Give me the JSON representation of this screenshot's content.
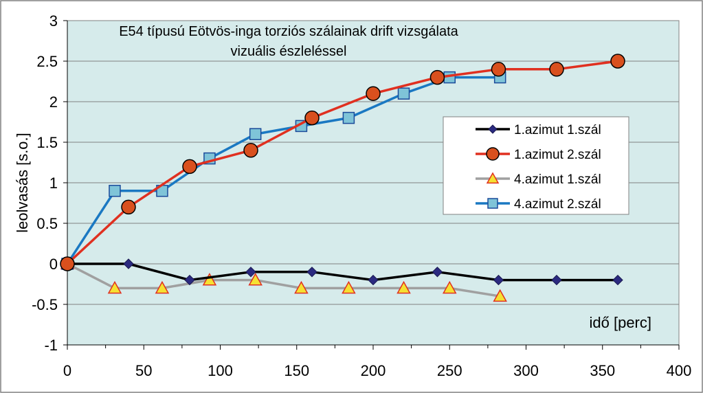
{
  "chart_data": {
    "type": "line",
    "title_lines": [
      "E54 típusú Eötvös-inga torziós szálainak drift vizsgálata",
      "vizuális észleléssel"
    ],
    "xlabel": "idő [perc]",
    "ylabel": "leolvasás [s.o.]",
    "xlim": [
      0,
      400
    ],
    "ylim": [
      -1,
      3
    ],
    "x_ticks": [
      "0",
      "50",
      "100",
      "150",
      "200",
      "250",
      "300",
      "350",
      "400"
    ],
    "y_ticks": [
      "-1",
      "-0.5",
      "0",
      "0.5",
      "1",
      "1.5",
      "2",
      "2.5",
      "3"
    ],
    "grid": true,
    "legend_position": "right",
    "plot_background": "#d6ebeb",
    "series": [
      {
        "name": "1.azimut 1.szál",
        "color": "#000000",
        "marker": "diamond",
        "marker_fill": "#2b2a80",
        "x": [
          0,
          40,
          80,
          120,
          160,
          200,
          242,
          282,
          320,
          360
        ],
        "y": [
          0,
          0,
          -0.2,
          -0.1,
          -0.1,
          -0.2,
          -0.1,
          -0.2,
          -0.2,
          -0.2
        ]
      },
      {
        "name": "1.azimut 2.szál",
        "color": "#e03020",
        "marker": "circle",
        "marker_fill": "#d9501e",
        "x": [
          0,
          40,
          80,
          120,
          160,
          200,
          242,
          282,
          320,
          360
        ],
        "y": [
          0,
          0.7,
          1.2,
          1.4,
          1.8,
          2.1,
          2.3,
          2.4,
          2.4,
          2.5
        ]
      },
      {
        "name": "4.azimut 1.szál",
        "color": "#a0a0a0",
        "marker": "triangle",
        "marker_fill": "#f5e132",
        "x": [
          0,
          31,
          62,
          93,
          123,
          153,
          184,
          220,
          250,
          283
        ],
        "y": [
          0,
          -0.3,
          -0.3,
          -0.2,
          -0.2,
          -0.3,
          -0.3,
          -0.3,
          -0.3,
          -0.4
        ]
      },
      {
        "name": "4.azimut 2.szál",
        "color": "#1a78c2",
        "marker": "square",
        "marker_fill": "#7fc4d8",
        "x": [
          0,
          31,
          62,
          93,
          123,
          153,
          184,
          220,
          250,
          283
        ],
        "y": [
          0,
          0.9,
          0.9,
          1.3,
          1.6,
          1.7,
          1.8,
          2.1,
          2.3,
          2.3
        ]
      }
    ]
  }
}
